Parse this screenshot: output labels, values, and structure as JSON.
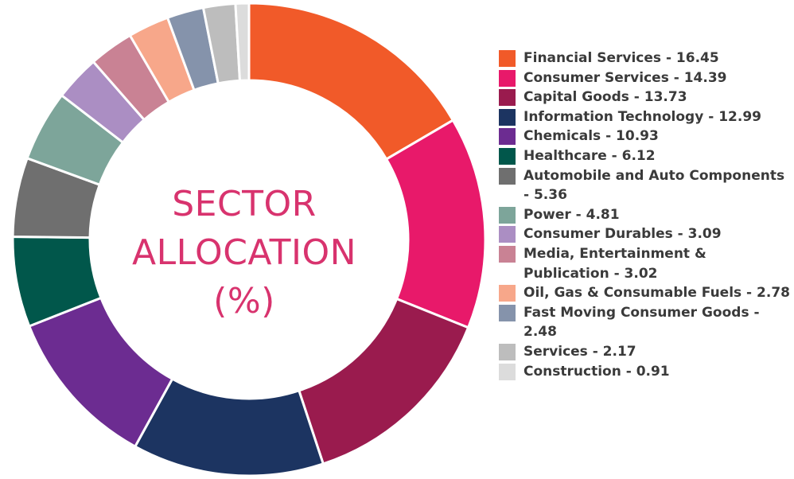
{
  "chart_data": {
    "type": "pie",
    "title_lines": [
      "SECTOR",
      "ALLOCATION",
      "(%)"
    ],
    "series": [
      {
        "label": "Financial Services - 16.45",
        "name": "Financial Services",
        "value": 16.45,
        "color": "#f15a29"
      },
      {
        "label": "Consumer Services - 14.39",
        "name": "Consumer Services",
        "value": 14.39,
        "color": "#e8196a"
      },
      {
        "label": "Capital Goods - 13.73",
        "name": "Capital Goods",
        "value": 13.73,
        "color": "#9a1b4e"
      },
      {
        "label": "Information Technology - 12.99",
        "name": "Information Technology",
        "value": 12.99,
        "color": "#1c3461"
      },
      {
        "label": "Chemicals - 10.93",
        "name": "Chemicals",
        "value": 10.93,
        "color": "#6c2c91"
      },
      {
        "label": "Healthcare - 6.12",
        "name": "Healthcare",
        "value": 6.12,
        "color": "#01574b"
      },
      {
        "label": "Automobile and Auto Components - 5.36",
        "name": "Automobile and Auto Components",
        "value": 5.36,
        "color": "#6f6f6f"
      },
      {
        "label": "Power - 4.81",
        "name": "Power",
        "value": 4.81,
        "color": "#7da59a"
      },
      {
        "label": "Consumer Durables - 3.09",
        "name": "Consumer Durables",
        "value": 3.09,
        "color": "#ab8ec3"
      },
      {
        "label": "Media, Entertainment & Publication - 3.02",
        "name": "Media, Entertainment & Publication",
        "value": 3.02,
        "color": "#c98294"
      },
      {
        "label": "Oil, Gas & Consumable Fuels - 2.78",
        "name": "Oil, Gas & Consumable Fuels",
        "value": 2.78,
        "color": "#f7a78a"
      },
      {
        "label": "Fast Moving Consumer Goods - 2.48",
        "name": "Fast Moving Consumer Goods",
        "value": 2.48,
        "color": "#8593ab"
      },
      {
        "label": "Services - 2.17",
        "name": "Services",
        "value": 2.17,
        "color": "#bdbdbd"
      },
      {
        "label": "Construction - 0.91",
        "name": "Construction",
        "value": 0.91,
        "color": "#dcdcdc"
      }
    ],
    "legend_position": "right"
  }
}
